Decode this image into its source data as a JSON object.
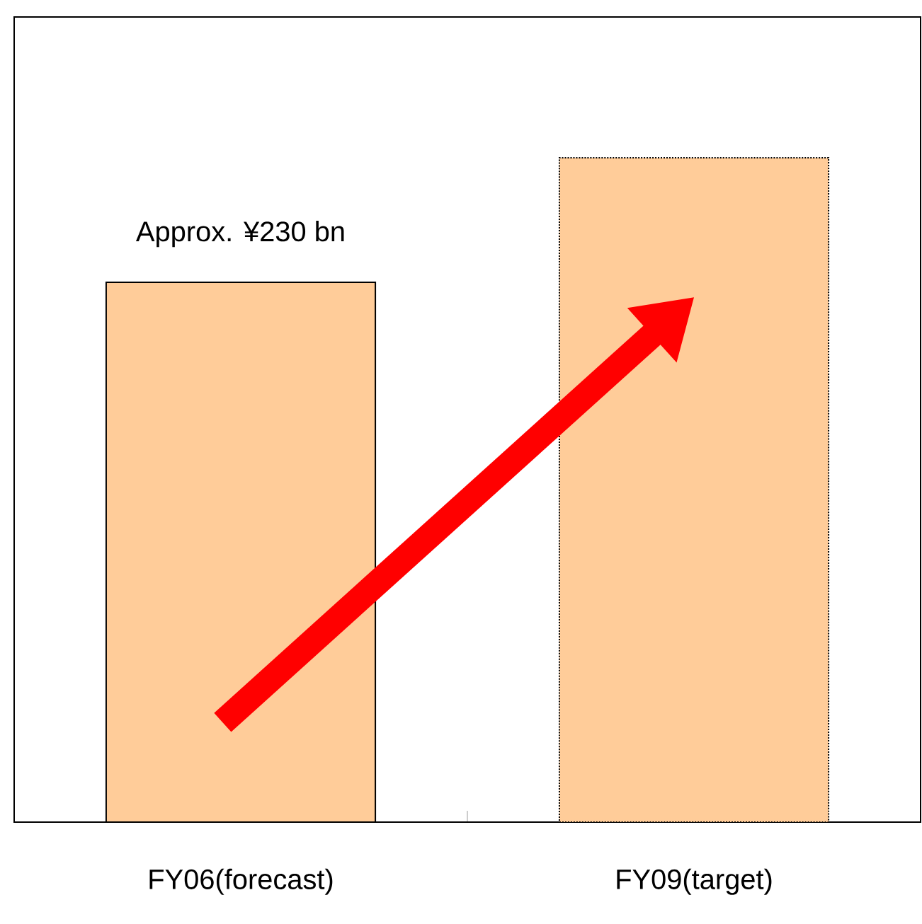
{
  "chart_data": {
    "type": "bar",
    "categories": [
      "FY06(forecast)",
      "FY09(target)"
    ],
    "ylim": [
      0,
      343
    ],
    "series": [
      {
        "values": [
          230,
          null
        ],
        "color": "#ffcc99",
        "line_style": "solid",
        "value_labels": [
          "Approx. ¥230 bn",
          null
        ]
      },
      {
        "values": [
          null,
          283
        ],
        "color": "#ffcc99",
        "line_style": "dotted"
      }
    ]
  }
}
